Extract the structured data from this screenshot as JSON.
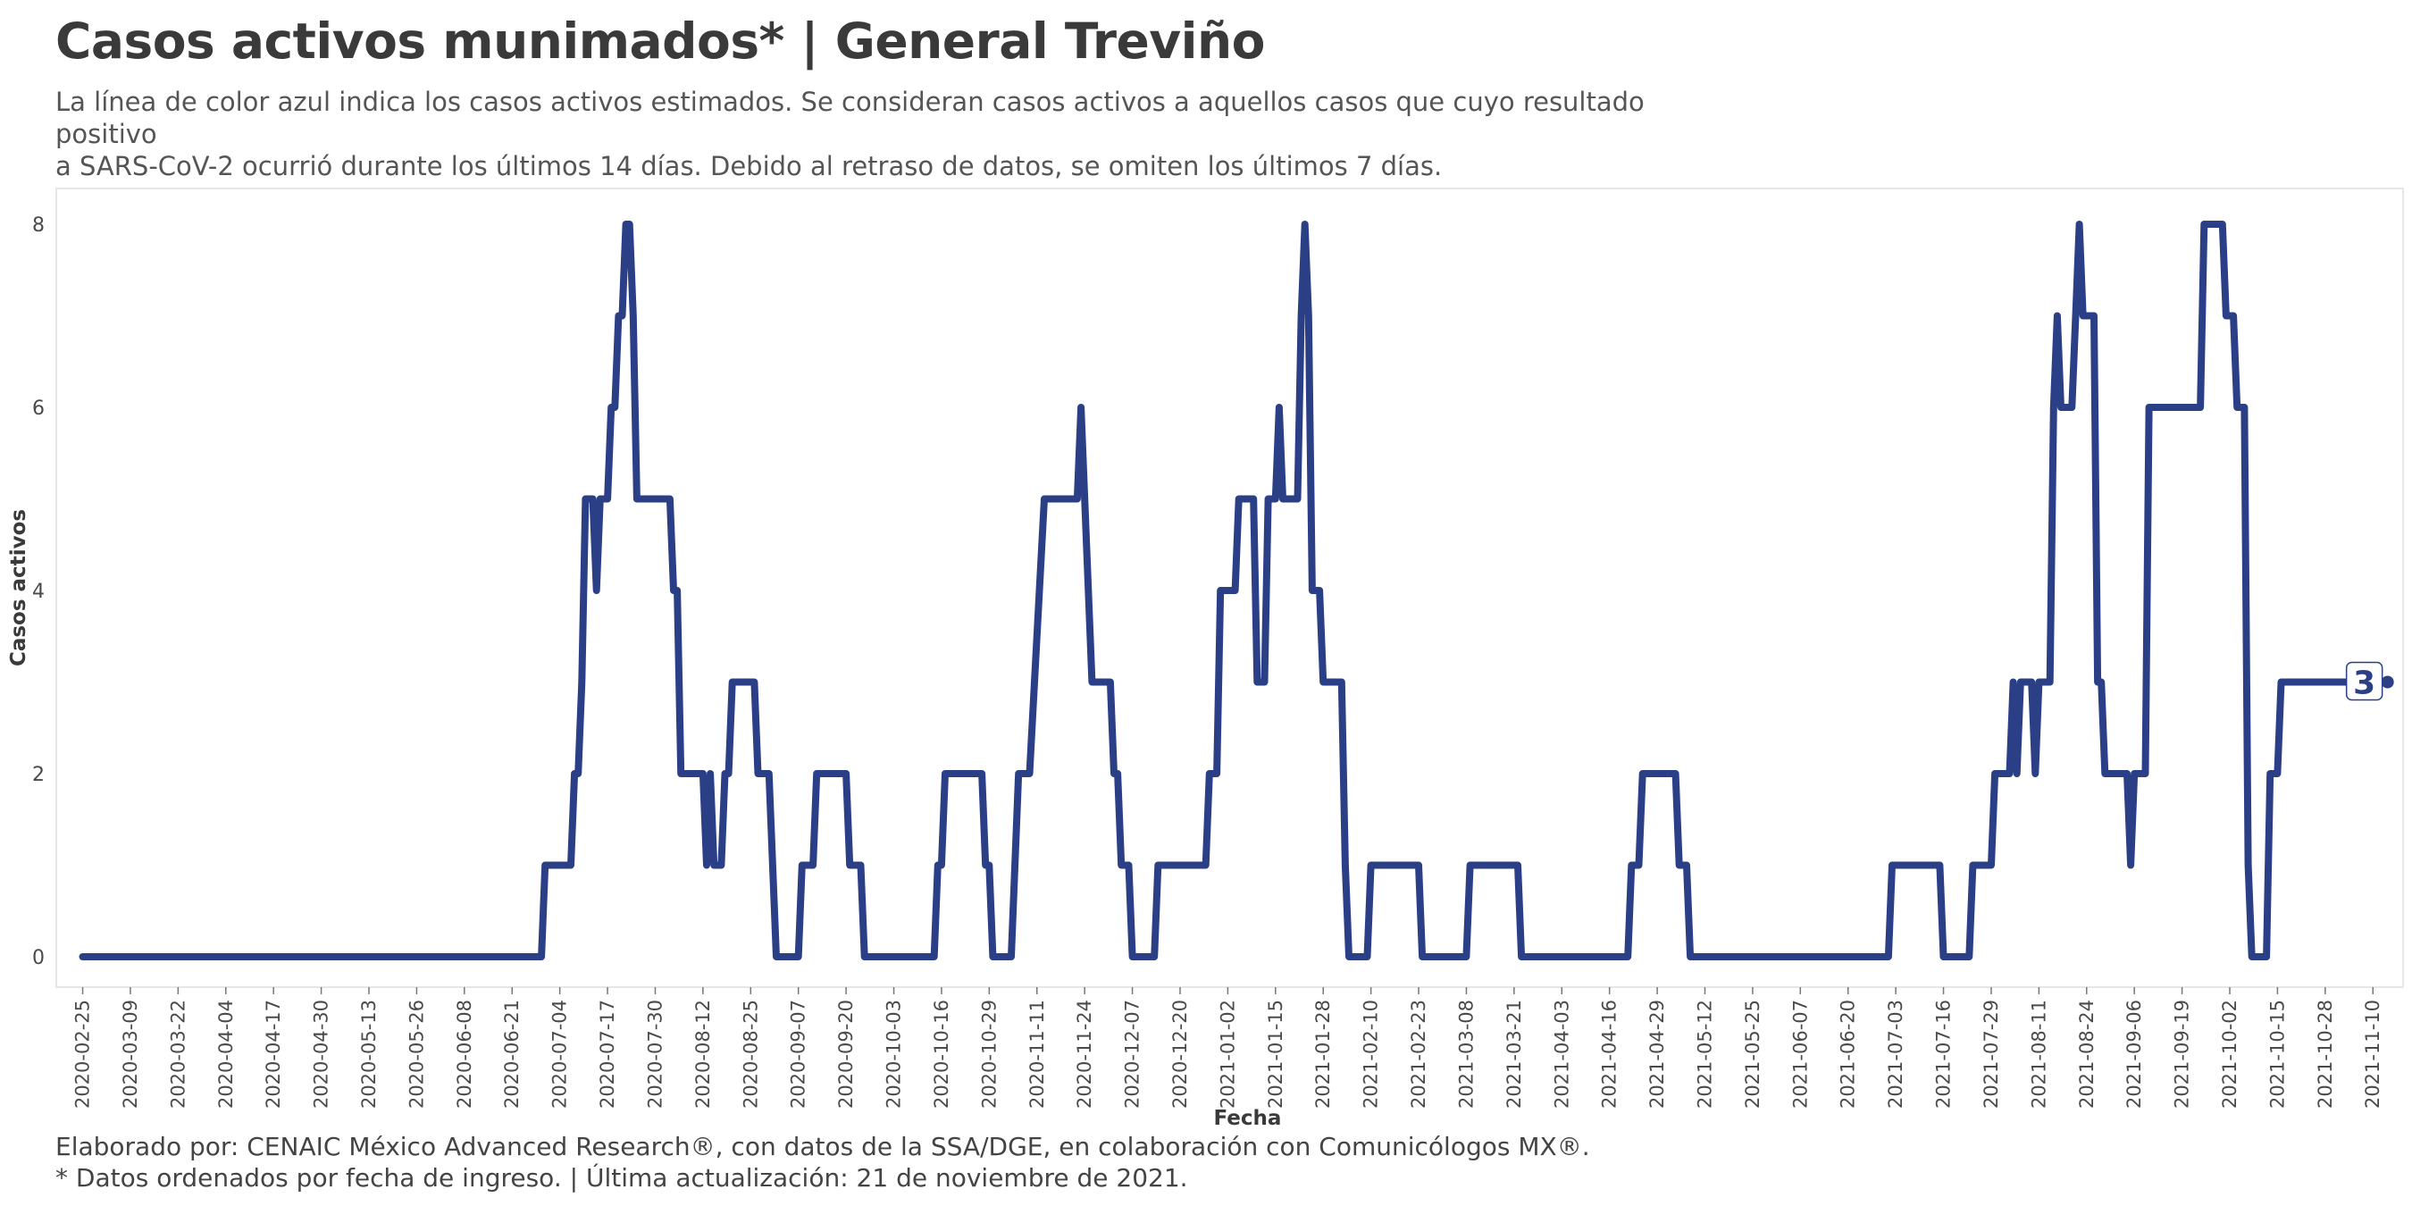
{
  "title": "Casos activos munimados* | General Treviño",
  "subtitle_lines": [
    "La línea de color azul indica los casos activos estimados. Se consideran casos activos a aquellos casos que cuyo resultado positivo",
    "a SARS-CoV-2 ocurrió durante los últimos 14 días. Debido al retraso de datos, se omiten los últimos 7 días."
  ],
  "caption_lines": [
    "Elaborado por: CENAIC México Advanced Research®, con datos de la SSA/DGE, en colaboración con Comunicólogos MX®.",
    "* Datos ordenados por fecha de ingreso. | Última actualización: 21 de noviembre de 2021."
  ],
  "colors": {
    "line": "#2b3f87",
    "panel_border": "#e6e6e6",
    "text": "#4a4a4a"
  },
  "chart_data": {
    "type": "line",
    "xlabel": "Fecha",
    "ylabel": "Casos activos",
    "xlim": [
      "2020-02-20",
      "2021-11-17"
    ],
    "ylim": [
      -0.4,
      8.4
    ],
    "y_ticks": [
      0,
      2,
      4,
      6,
      8
    ],
    "x_ticks": [
      "2020-02-25",
      "2020-03-09",
      "2020-03-22",
      "2020-04-04",
      "2020-04-17",
      "2020-04-30",
      "2020-05-13",
      "2020-05-26",
      "2020-06-08",
      "2020-06-21",
      "2020-07-04",
      "2020-07-17",
      "2020-07-30",
      "2020-08-12",
      "2020-08-25",
      "2020-09-07",
      "2020-09-20",
      "2020-10-03",
      "2020-10-16",
      "2020-10-29",
      "2020-11-11",
      "2020-11-24",
      "2020-12-07",
      "2020-12-20",
      "2021-01-02",
      "2021-01-15",
      "2021-01-28",
      "2021-02-10",
      "2021-02-23",
      "2021-03-08",
      "2021-03-21",
      "2021-04-03",
      "2021-04-16",
      "2021-04-29",
      "2021-05-12",
      "2021-05-25",
      "2021-06-07",
      "2021-06-20",
      "2021-07-03",
      "2021-07-16",
      "2021-07-29",
      "2021-08-11",
      "2021-08-24",
      "2021-09-06",
      "2021-09-19",
      "2021-10-02",
      "2021-10-15",
      "2021-10-28",
      "2021-11-10"
    ],
    "grid": false,
    "series": [
      {
        "points": [
          [
            "2020-02-25",
            0
          ],
          [
            "2020-06-29",
            0
          ],
          [
            "2020-06-30",
            1
          ],
          [
            "2020-07-07",
            1
          ],
          [
            "2020-07-08",
            2
          ],
          [
            "2020-07-09",
            2
          ],
          [
            "2020-07-10",
            3
          ],
          [
            "2020-07-11",
            5
          ],
          [
            "2020-07-13",
            5
          ],
          [
            "2020-07-14",
            4
          ],
          [
            "2020-07-15",
            5
          ],
          [
            "2020-07-17",
            5
          ],
          [
            "2020-07-18",
            6
          ],
          [
            "2020-07-19",
            6
          ],
          [
            "2020-07-20",
            7
          ],
          [
            "2020-07-21",
            7
          ],
          [
            "2020-07-22",
            8
          ],
          [
            "2020-07-23",
            8
          ],
          [
            "2020-07-24",
            7
          ],
          [
            "2020-07-25",
            5
          ],
          [
            "2020-08-03",
            5
          ],
          [
            "2020-08-04",
            4
          ],
          [
            "2020-08-05",
            4
          ],
          [
            "2020-08-06",
            2
          ],
          [
            "2020-08-12",
            2
          ],
          [
            "2020-08-13",
            1
          ],
          [
            "2020-08-14",
            2
          ],
          [
            "2020-08-15",
            1
          ],
          [
            "2020-08-17",
            1
          ],
          [
            "2020-08-18",
            2
          ],
          [
            "2020-08-19",
            2
          ],
          [
            "2020-08-20",
            3
          ],
          [
            "2020-08-26",
            3
          ],
          [
            "2020-08-27",
            2
          ],
          [
            "2020-08-30",
            2
          ],
          [
            "2020-08-31",
            1
          ],
          [
            "2020-09-01",
            0
          ],
          [
            "2020-09-07",
            0
          ],
          [
            "2020-09-08",
            1
          ],
          [
            "2020-09-11",
            1
          ],
          [
            "2020-09-12",
            2
          ],
          [
            "2020-09-20",
            2
          ],
          [
            "2020-09-21",
            1
          ],
          [
            "2020-09-24",
            1
          ],
          [
            "2020-09-25",
            0
          ],
          [
            "2020-10-14",
            0
          ],
          [
            "2020-10-15",
            1
          ],
          [
            "2020-10-16",
            1
          ],
          [
            "2020-10-17",
            2
          ],
          [
            "2020-10-27",
            2
          ],
          [
            "2020-10-28",
            1
          ],
          [
            "2020-10-29",
            1
          ],
          [
            "2020-10-30",
            0
          ],
          [
            "2020-11-04",
            0
          ],
          [
            "2020-11-05",
            1
          ],
          [
            "2020-11-06",
            2
          ],
          [
            "2020-11-09",
            2
          ],
          [
            "2020-11-13",
            5
          ],
          [
            "2020-11-22",
            5
          ],
          [
            "2020-11-23",
            6
          ],
          [
            "2020-11-24",
            5
          ],
          [
            "2020-11-26",
            3
          ],
          [
            "2020-12-01",
            3
          ],
          [
            "2020-12-02",
            2
          ],
          [
            "2020-12-03",
            2
          ],
          [
            "2020-12-04",
            1
          ],
          [
            "2020-12-06",
            1
          ],
          [
            "2020-12-07",
            0
          ],
          [
            "2020-12-13",
            0
          ],
          [
            "2020-12-14",
            1
          ],
          [
            "2020-12-27",
            1
          ],
          [
            "2020-12-28",
            2
          ],
          [
            "2020-12-30",
            2
          ],
          [
            "2020-12-31",
            4
          ],
          [
            "2021-01-04",
            4
          ],
          [
            "2021-01-05",
            5
          ],
          [
            "2021-01-09",
            5
          ],
          [
            "2021-01-10",
            3
          ],
          [
            "2021-01-12",
            3
          ],
          [
            "2021-01-13",
            5
          ],
          [
            "2021-01-15",
            5
          ],
          [
            "2021-01-16",
            6
          ],
          [
            "2021-01-17",
            5
          ],
          [
            "2021-01-21",
            5
          ],
          [
            "2021-01-22",
            7
          ],
          [
            "2021-01-23",
            8
          ],
          [
            "2021-01-24",
            7
          ],
          [
            "2021-01-25",
            4
          ],
          [
            "2021-01-27",
            4
          ],
          [
            "2021-01-28",
            3
          ],
          [
            "2021-02-02",
            3
          ],
          [
            "2021-02-03",
            1
          ],
          [
            "2021-02-04",
            0
          ],
          [
            "2021-02-09",
            0
          ],
          [
            "2021-02-10",
            1
          ],
          [
            "2021-02-23",
            1
          ],
          [
            "2021-02-24",
            0
          ],
          [
            "2021-03-08",
            0
          ],
          [
            "2021-03-09",
            1
          ],
          [
            "2021-03-22",
            1
          ],
          [
            "2021-03-23",
            0
          ],
          [
            "2021-04-21",
            0
          ],
          [
            "2021-04-22",
            1
          ],
          [
            "2021-04-24",
            1
          ],
          [
            "2021-04-25",
            2
          ],
          [
            "2021-05-04",
            2
          ],
          [
            "2021-05-05",
            1
          ],
          [
            "2021-05-07",
            1
          ],
          [
            "2021-05-08",
            0
          ],
          [
            "2021-07-01",
            0
          ],
          [
            "2021-07-02",
            1
          ],
          [
            "2021-07-15",
            1
          ],
          [
            "2021-07-16",
            0
          ],
          [
            "2021-07-23",
            0
          ],
          [
            "2021-07-24",
            1
          ],
          [
            "2021-07-29",
            1
          ],
          [
            "2021-07-30",
            2
          ],
          [
            "2021-08-03",
            2
          ],
          [
            "2021-08-04",
            3
          ],
          [
            "2021-08-05",
            2
          ],
          [
            "2021-08-06",
            3
          ],
          [
            "2021-08-09",
            3
          ],
          [
            "2021-08-10",
            2
          ],
          [
            "2021-08-11",
            3
          ],
          [
            "2021-08-14",
            3
          ],
          [
            "2021-08-15",
            6
          ],
          [
            "2021-08-16",
            7
          ],
          [
            "2021-08-17",
            6
          ],
          [
            "2021-08-20",
            6
          ],
          [
            "2021-08-21",
            7
          ],
          [
            "2021-08-22",
            8
          ],
          [
            "2021-08-23",
            7
          ],
          [
            "2021-08-26",
            7
          ],
          [
            "2021-08-27",
            3
          ],
          [
            "2021-08-28",
            3
          ],
          [
            "2021-08-29",
            2
          ],
          [
            "2021-09-04",
            2
          ],
          [
            "2021-09-05",
            1
          ],
          [
            "2021-09-06",
            2
          ],
          [
            "2021-09-09",
            2
          ],
          [
            "2021-09-10",
            6
          ],
          [
            "2021-09-24",
            6
          ],
          [
            "2021-09-25",
            8
          ],
          [
            "2021-09-30",
            8
          ],
          [
            "2021-10-01",
            7
          ],
          [
            "2021-10-03",
            7
          ],
          [
            "2021-10-04",
            6
          ],
          [
            "2021-10-06",
            6
          ],
          [
            "2021-10-07",
            1
          ],
          [
            "2021-10-08",
            0
          ],
          [
            "2021-10-12",
            0
          ],
          [
            "2021-10-13",
            2
          ],
          [
            "2021-10-15",
            2
          ],
          [
            "2021-10-16",
            3
          ],
          [
            "2021-11-14",
            3
          ]
        ]
      }
    ],
    "end_label": {
      "x": "2021-11-14",
      "value": 3,
      "text": "3"
    }
  }
}
